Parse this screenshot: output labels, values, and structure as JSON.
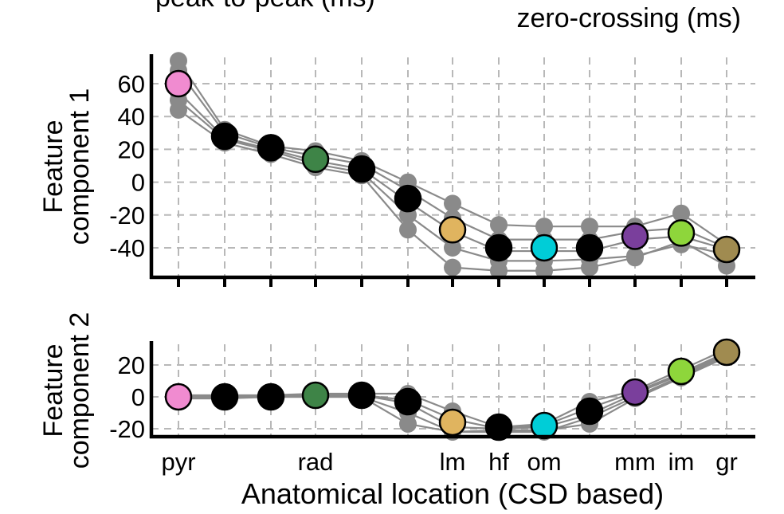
{
  "header": {
    "left_text": "peak-to-peak (ms)",
    "right_text": "zero-crossing (ms)"
  },
  "colors": {
    "trace": "#8a8a8a",
    "pyr": "#f08bd0",
    "rad": "#3e8447",
    "lm": "#e0b45f",
    "om": "#00cdd7",
    "mm": "#7a3f9c",
    "im": "#8ed63b",
    "gr": "#a08b50",
    "default": "#000000"
  },
  "chart_data": [
    {
      "type": "line",
      "ylabel": "Feature component 1",
      "ylim": [
        -58,
        78
      ],
      "yticks": [
        60,
        40,
        20,
        0,
        -20,
        -40
      ],
      "ytick_labels": [
        "60",
        "40",
        "20",
        "0",
        "-20",
        "-40"
      ],
      "grid": true,
      "categories": [
        "pyr",
        "",
        "",
        "rad",
        "",
        "",
        "lm",
        "hf",
        "om",
        "",
        "mm",
        "im",
        "gr"
      ],
      "mean": [
        60,
        28,
        21,
        14,
        8,
        -10,
        -29,
        -40,
        -40,
        -40,
        -33,
        -31,
        -41
      ],
      "point_colors": [
        "pyr",
        "default",
        "default",
        "rad",
        "default",
        "default",
        "lm",
        "default",
        "om",
        "default",
        "mm",
        "im",
        "gr"
      ],
      "series": [
        {
          "values": [
            74,
            32,
            22,
            19,
            13,
            0,
            -13,
            -26,
            -27,
            -27,
            -27,
            -19,
            -38
          ]
        },
        {
          "values": [
            68,
            30,
            21,
            16,
            11,
            -5,
            -22,
            -35,
            -35,
            -35,
            -30,
            -28,
            -40
          ]
        },
        {
          "values": [
            55,
            27,
            20,
            13,
            8,
            -12,
            -30,
            -42,
            -42,
            -42,
            -35,
            -33,
            -41
          ]
        },
        {
          "values": [
            50,
            26,
            19,
            11,
            6,
            -20,
            -40,
            -48,
            -48,
            -47,
            -45,
            -38,
            -44
          ]
        },
        {
          "values": [
            44,
            24,
            17,
            9,
            4,
            -29,
            -52,
            -54,
            -54,
            -52,
            -46,
            -36,
            -51
          ]
        }
      ]
    },
    {
      "type": "line",
      "ylabel": "Feature component 2",
      "ylim": [
        -25,
        35
      ],
      "yticks": [
        20,
        0,
        -20
      ],
      "ytick_labels": [
        "20",
        "0",
        "-20"
      ],
      "grid": true,
      "xlabel": "Anatomical location (CSD based)",
      "categories": [
        "pyr",
        "",
        "",
        "rad",
        "",
        "",
        "lm",
        "hf",
        "om",
        "",
        "mm",
        "im",
        "gr"
      ],
      "mean": [
        0,
        0,
        0,
        1,
        1,
        -3,
        -16,
        -19,
        -18,
        -9,
        3,
        16,
        28
      ],
      "point_colors": [
        "pyr",
        "default",
        "default",
        "rad",
        "default",
        "default",
        "lm",
        "default",
        "om",
        "default",
        "mm",
        "im",
        "gr"
      ],
      "series": [
        {
          "values": [
            1,
            1,
            1,
            2,
            2,
            2,
            -9,
            -19,
            -17,
            -3,
            4,
            17,
            30
          ]
        },
        {
          "values": [
            0,
            0,
            0,
            1,
            1,
            -2,
            -14,
            -20,
            -18,
            -7,
            3,
            15,
            28
          ]
        },
        {
          "values": [
            0,
            0,
            0,
            1,
            1,
            -4,
            -19,
            -20,
            -19,
            -11,
            2,
            14,
            27
          ]
        },
        {
          "values": [
            -1,
            0,
            0,
            0,
            0,
            -10,
            -22,
            -22,
            -22,
            -13,
            0,
            13,
            26
          ]
        },
        {
          "values": [
            -1,
            -1,
            0,
            0,
            0,
            -17,
            -22,
            -21,
            -21,
            -17,
            -1,
            12,
            25
          ]
        }
      ]
    }
  ]
}
